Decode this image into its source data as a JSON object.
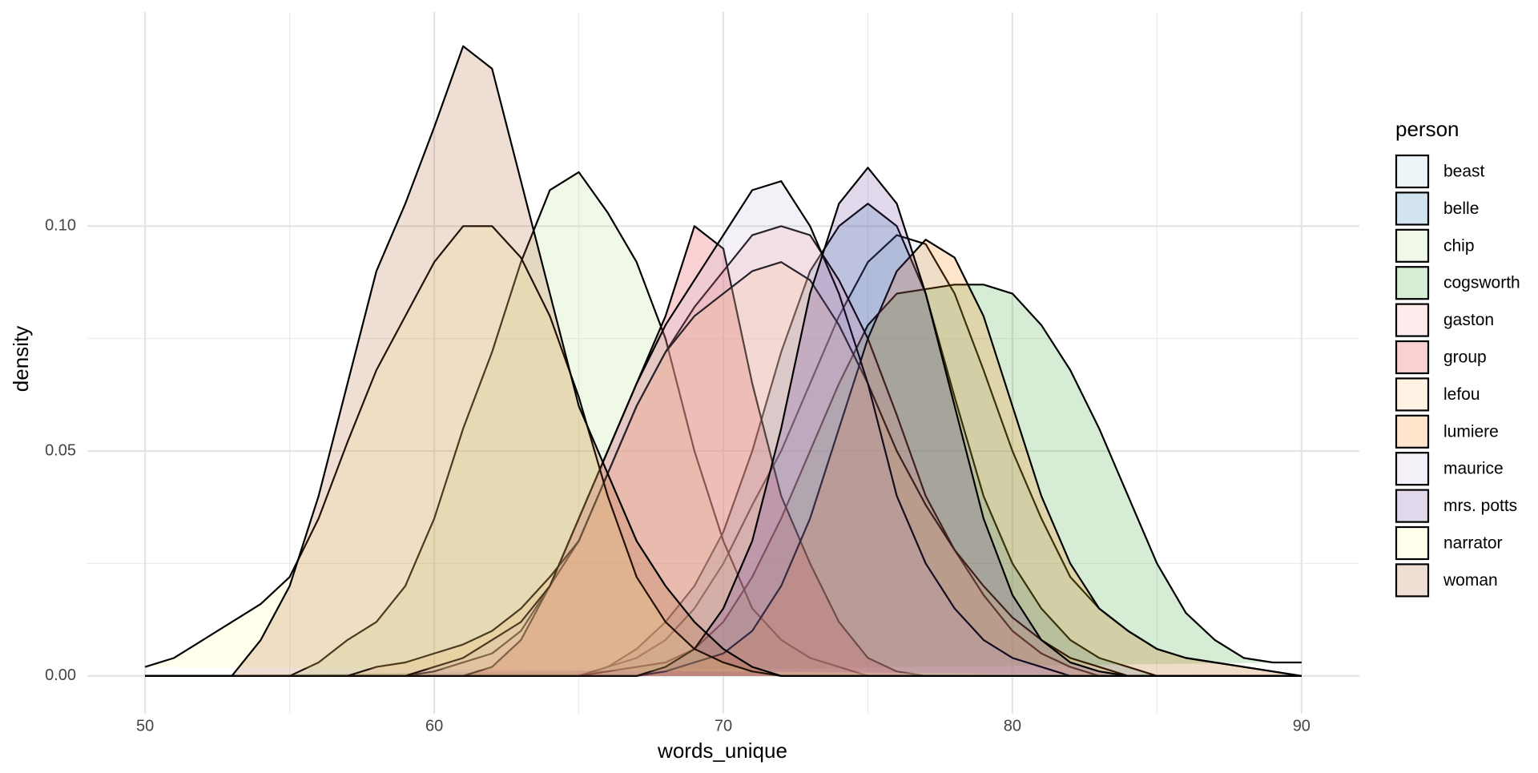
{
  "chart_data": {
    "type": "density",
    "xlabel": "words_unique",
    "ylabel": "density",
    "legend_title": "person",
    "x": [
      50,
      51,
      52,
      53,
      54,
      55,
      56,
      57,
      58,
      59,
      60,
      61,
      62,
      63,
      64,
      65,
      66,
      67,
      68,
      69,
      70,
      71,
      72,
      73,
      74,
      75,
      76,
      77,
      78,
      79,
      80,
      81,
      82,
      83,
      84,
      85,
      86,
      87,
      88,
      89,
      90
    ],
    "series": [
      {
        "name": "beast",
        "color": "#A6CEE3",
        "values": [
          0,
          0,
          0,
          0,
          0,
          0,
          0,
          0,
          0,
          0,
          0,
          0,
          0,
          0,
          0,
          0,
          0.002,
          0.004,
          0.008,
          0.015,
          0.025,
          0.038,
          0.05,
          0.065,
          0.08,
          0.092,
          0.098,
          0.096,
          0.085,
          0.068,
          0.05,
          0.035,
          0.022,
          0.015,
          0.01,
          0.006,
          0.004,
          0.003,
          0.002,
          0.001,
          0
        ]
      },
      {
        "name": "belle",
        "color": "#1F78B4",
        "values": [
          0,
          0,
          0,
          0,
          0,
          0,
          0,
          0,
          0,
          0,
          0,
          0,
          0,
          0,
          0,
          0,
          0.002,
          0.006,
          0.012,
          0.02,
          0.032,
          0.05,
          0.072,
          0.09,
          0.1,
          0.105,
          0.1,
          0.085,
          0.062,
          0.04,
          0.025,
          0.015,
          0.008,
          0.004,
          0.002,
          0,
          0,
          0,
          0,
          0,
          0
        ]
      },
      {
        "name": "chip",
        "color": "#B2DF8A",
        "values": [
          0,
          0,
          0,
          0,
          0,
          0,
          0.003,
          0.008,
          0.012,
          0.02,
          0.035,
          0.055,
          0.072,
          0.092,
          0.108,
          0.112,
          0.103,
          0.092,
          0.075,
          0.05,
          0.03,
          0.015,
          0.008,
          0.004,
          0.002,
          0,
          0,
          0,
          0,
          0,
          0,
          0,
          0,
          0,
          0,
          0,
          0,
          0,
          0,
          0,
          0
        ]
      },
      {
        "name": "cogsworth",
        "color": "#33A02C",
        "values": [
          0,
          0,
          0,
          0,
          0,
          0,
          0,
          0,
          0,
          0,
          0,
          0,
          0,
          0,
          0,
          0,
          0.001,
          0.002,
          0.003,
          0.006,
          0.012,
          0.022,
          0.035,
          0.05,
          0.065,
          0.078,
          0.085,
          0.086,
          0.087,
          0.087,
          0.085,
          0.078,
          0.068,
          0.055,
          0.04,
          0.025,
          0.014,
          0.008,
          0.004,
          0.003,
          0.003
        ]
      },
      {
        "name": "gaston",
        "color": "#FB9A99",
        "values": [
          0,
          0,
          0,
          0,
          0,
          0,
          0,
          0,
          0,
          0,
          0.001,
          0.003,
          0.005,
          0.01,
          0.02,
          0.03,
          0.045,
          0.06,
          0.072,
          0.082,
          0.09,
          0.098,
          0.1,
          0.098,
          0.088,
          0.075,
          0.058,
          0.04,
          0.028,
          0.018,
          0.01,
          0.005,
          0.002,
          0,
          0,
          0,
          0,
          0,
          0,
          0,
          0
        ]
      },
      {
        "name": "group",
        "color": "#E31A1C",
        "values": [
          0,
          0,
          0,
          0,
          0,
          0,
          0,
          0,
          0,
          0,
          0,
          0,
          0.002,
          0.008,
          0.02,
          0.035,
          0.05,
          0.065,
          0.08,
          0.1,
          0.095,
          0.065,
          0.04,
          0.025,
          0.012,
          0.004,
          0.001,
          0,
          0,
          0,
          0,
          0,
          0,
          0,
          0,
          0,
          0,
          0,
          0,
          0,
          0
        ]
      },
      {
        "name": "lefou",
        "color": "#FDBF6F",
        "values": [
          0,
          0,
          0,
          0,
          0,
          0,
          0,
          0,
          0.002,
          0.003,
          0.005,
          0.007,
          0.01,
          0.015,
          0.022,
          0.03,
          0.045,
          0.06,
          0.072,
          0.08,
          0.085,
          0.09,
          0.092,
          0.088,
          0.078,
          0.065,
          0.05,
          0.038,
          0.028,
          0.02,
          0.013,
          0.008,
          0.004,
          0.002,
          0,
          0,
          0,
          0,
          0,
          0,
          0
        ]
      },
      {
        "name": "lumiere",
        "color": "#FF7F00",
        "values": [
          0,
          0,
          0,
          0,
          0,
          0,
          0,
          0,
          0,
          0,
          0,
          0,
          0,
          0,
          0,
          0,
          0,
          0,
          0.001,
          0.003,
          0.005,
          0.01,
          0.02,
          0.035,
          0.055,
          0.075,
          0.09,
          0.097,
          0.093,
          0.08,
          0.06,
          0.04,
          0.025,
          0.015,
          0.01,
          0.006,
          0.004,
          0.003,
          0.002,
          0.001,
          0
        ]
      },
      {
        "name": "maurice",
        "color": "#CAB2D6",
        "values": [
          0,
          0,
          0,
          0,
          0,
          0,
          0,
          0,
          0,
          0,
          0.002,
          0.004,
          0.008,
          0.012,
          0.02,
          0.035,
          0.05,
          0.065,
          0.078,
          0.088,
          0.098,
          0.108,
          0.11,
          0.1,
          0.085,
          0.065,
          0.04,
          0.025,
          0.015,
          0.008,
          0.004,
          0.002,
          0,
          0,
          0,
          0,
          0,
          0,
          0,
          0,
          0
        ]
      },
      {
        "name": "mrs. potts",
        "color": "#6A3D9A",
        "values": [
          0,
          0,
          0,
          0,
          0,
          0,
          0,
          0,
          0,
          0,
          0,
          0,
          0,
          0,
          0,
          0,
          0,
          0,
          0.002,
          0.006,
          0.015,
          0.03,
          0.055,
          0.085,
          0.105,
          0.113,
          0.105,
          0.085,
          0.06,
          0.035,
          0.018,
          0.008,
          0.003,
          0.001,
          0,
          0,
          0,
          0,
          0,
          0,
          0
        ]
      },
      {
        "name": "narrator",
        "color": "#FFFF99",
        "values": [
          0.002,
          0.004,
          0.008,
          0.012,
          0.016,
          0.022,
          0.035,
          0.052,
          0.068,
          0.08,
          0.092,
          0.1,
          0.1,
          0.093,
          0.08,
          0.062,
          0.04,
          0.022,
          0.012,
          0.006,
          0.003,
          0.001,
          0,
          0,
          0,
          0,
          0,
          0,
          0,
          0,
          0,
          0,
          0,
          0,
          0,
          0,
          0,
          0,
          0,
          0,
          0
        ]
      },
      {
        "name": "woman",
        "color": "#B15928",
        "values": [
          0,
          0,
          0,
          0,
          0.008,
          0.02,
          0.04,
          0.065,
          0.09,
          0.105,
          0.122,
          0.14,
          0.135,
          0.11,
          0.085,
          0.06,
          0.045,
          0.03,
          0.02,
          0.012,
          0.006,
          0.002,
          0,
          0,
          0,
          0,
          0,
          0,
          0,
          0,
          0,
          0,
          0,
          0,
          0,
          0,
          0,
          0,
          0,
          0,
          0
        ]
      }
    ],
    "xlim": [
      48,
      92
    ],
    "xticks": [
      50,
      60,
      70,
      80,
      90
    ],
    "ylim": [
      -0.0084,
      0.1476
    ],
    "yticks": [
      {
        "value": 0,
        "label": "0.00"
      },
      {
        "value": 0.05,
        "label": "0.05"
      },
      {
        "value": 0.1,
        "label": "0.10"
      }
    ],
    "grid": true,
    "fill_opacity": 0.2,
    "legend": "right"
  }
}
